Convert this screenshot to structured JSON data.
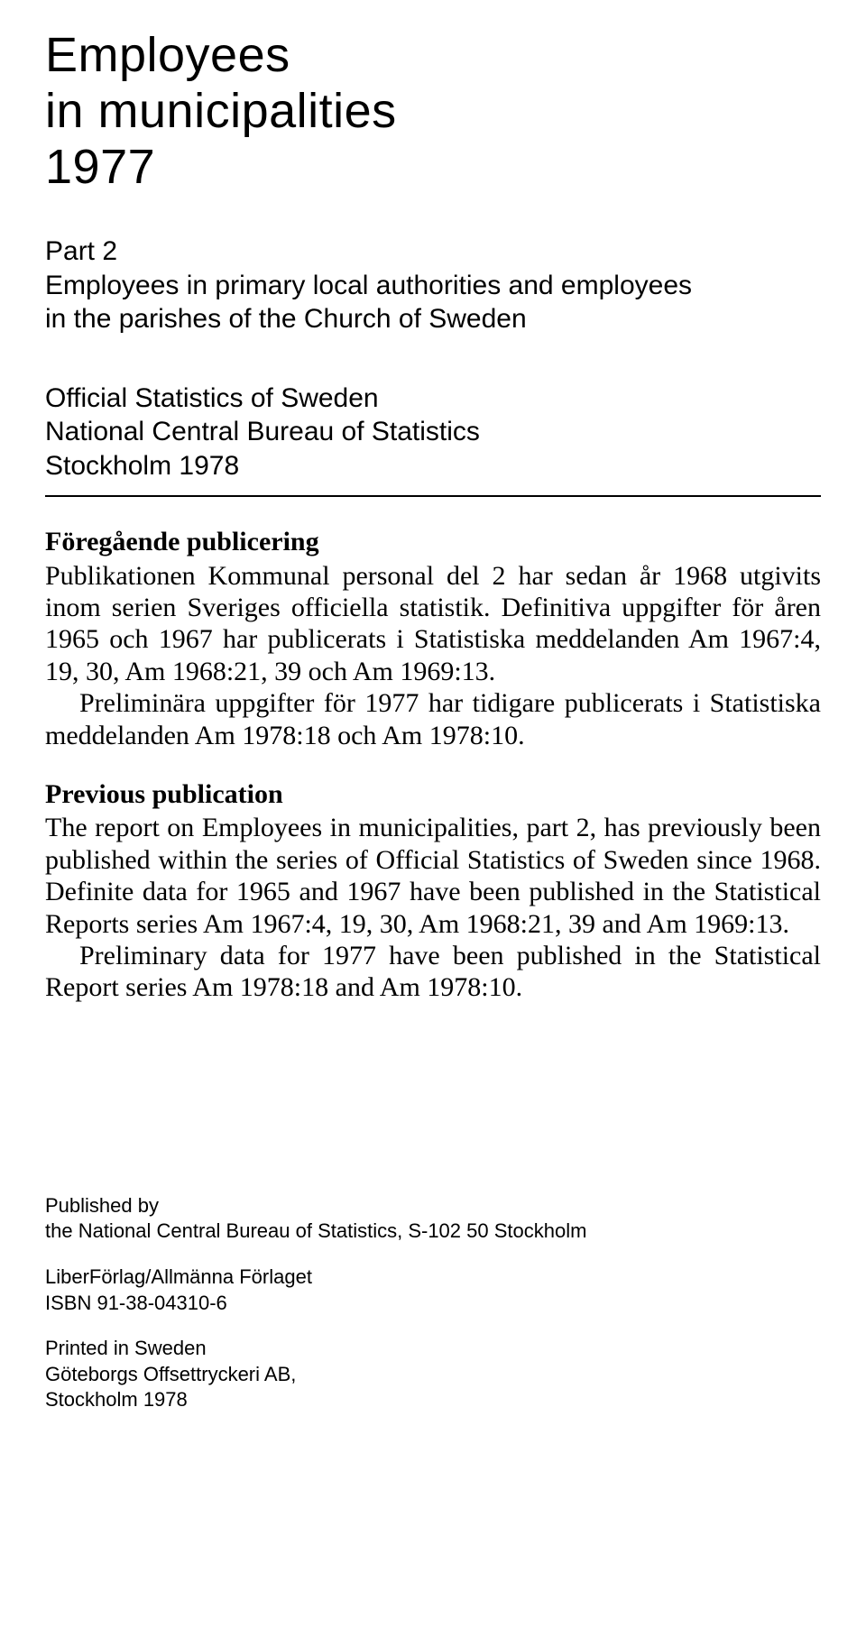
{
  "title": {
    "line1": "Employees",
    "line2": "in municipalities",
    "line3": "1977"
  },
  "subtitle": {
    "line1": "Part 2",
    "line2": "Employees in primary local authorities and employees",
    "line3": "in the parishes of the Church of Sweden"
  },
  "publisher": {
    "line1": "Official Statistics of Sweden",
    "line2": "National Central Bureau of Statistics",
    "line3": "Stockholm 1978"
  },
  "sv_heading": "Föregående publicering",
  "sv_para1": "Publikationen Kommunal personal del 2 har sedan år 1968 utgivits inom serien Sveriges officiella statistik. Definitiva uppgifter för åren 1965 och 1967 har publicerats i Statistiska meddelanden Am 1967:4, 19, 30, Am 1968:21, 39 och Am 1969:13.",
  "sv_para2": "Preliminära uppgifter för 1977 har tidigare publicerats i Statistiska meddelanden Am 1978:18 och Am 1978:10.",
  "en_heading": "Previous publication",
  "en_para1": "The report on Employees in municipalities, part 2, has previously been published within the series of Official Statistics of Sweden since 1968. Definite data for 1965 and 1967 have been published in the Statistical Reports series Am 1967:4, 19, 30, Am 1968:21, 39 and Am 1969:13.",
  "en_para2": "Preliminary data for 1977 have been published in the Statistical Report series Am 1978:18 and Am 1978:10.",
  "footer": {
    "published_by_label": "Published by",
    "published_by_value": "the National Central Bureau of Statistics, S-102 50 Stockholm",
    "publisher_name": "LiberFörlag/Allmänna Förlaget",
    "isbn": "ISBN 91-38-04310-6",
    "printed": "Printed in Sweden",
    "printer": "Göteborgs Offsettryckeri AB,",
    "printer_city": "Stockholm 1978"
  }
}
